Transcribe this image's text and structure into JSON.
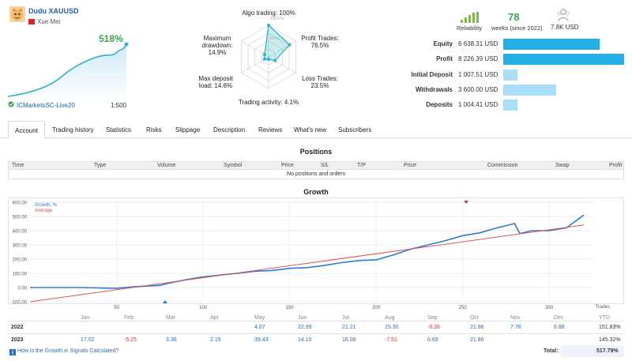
{
  "signal": {
    "name": "Dudu XAUUSD",
    "author": "Xue Mei",
    "growth": "518%",
    "server": "ICMarketsSC-Live20",
    "leverage": "1:500"
  },
  "radar": {
    "algo_trading": "Algo trading: 100%",
    "profit_trades": "Profit Trades:\n76.5%",
    "loss_trades": "Loss Trades:\n23.5%",
    "trading_activity": "Trading activity: 4.1%",
    "max_deposit_load": "Max deposit\nload: 14.6%",
    "max_drawdown": "Maximum\ndrawdown:\n14.9%",
    "scale_100": "100+%",
    "scale_50": "50%",
    "values": {
      "algo": 1.0,
      "profit": 0.765,
      "loss": 0.235,
      "activity": 0.041,
      "load": 0.146,
      "drawdown": 0.149
    }
  },
  "stats": {
    "reliability_label": "Reliability",
    "weeks_value": "78",
    "weeks_label": "weeks (since 2022)",
    "subscribers_value": "7.8K USD",
    "reliability_bars": 5
  },
  "balance": {
    "rows": [
      {
        "label": "Equity",
        "value": "6 638.31 USD",
        "fraction": 0.8,
        "color": "#23b0e8"
      },
      {
        "label": "Profit",
        "value": "8 226.39 USD",
        "fraction": 1.0,
        "color": "#23b0e8"
      },
      {
        "label": "Initial Deposit",
        "value": "1 007.51 USD",
        "fraction": 0.12,
        "color": "#a9defa"
      },
      {
        "label": "Withdrawals",
        "value": "3 600.00 USD",
        "fraction": 0.44,
        "color": "#a9defa"
      },
      {
        "label": "Deposits",
        "value": "1 004.41 USD",
        "fraction": 0.12,
        "color": "#a9defa"
      }
    ]
  },
  "tabs": [
    "Account",
    "Trading history",
    "Statistics",
    "Risks",
    "Slippage",
    "Description",
    "Reviews",
    "What's new",
    "Subscribers"
  ],
  "positions": {
    "title": "Positions",
    "columns": [
      "Time",
      "Type",
      "Volume",
      "Symbol",
      "Price",
      "S/L",
      "T/P",
      "Price",
      "Commission",
      "Swap",
      "Profit"
    ],
    "empty": "No positions and orders"
  },
  "growth": {
    "title": "Growth",
    "legend_growth": "Growth, %",
    "legend_average": "Average",
    "x_label": "Trades",
    "y_ticks": [
      "600.00",
      "500.00",
      "400.00",
      "300.00",
      "200.00",
      "100.00",
      "0.00",
      "-100.00"
    ],
    "x_ticks": [
      "50",
      "100",
      "150",
      "200",
      "250",
      "300"
    ]
  },
  "chart_data": {
    "type": "line",
    "x_label": "Trades",
    "ylim": [
      -100,
      600
    ],
    "xlim": [
      0,
      325
    ],
    "series": [
      {
        "name": "Growth, %",
        "color": "#2b7bd6",
        "x": [
          0,
          10,
          20,
          30,
          40,
          50,
          60,
          70,
          75,
          80,
          90,
          100,
          110,
          120,
          130,
          140,
          150,
          160,
          170,
          180,
          190,
          200,
          210,
          220,
          230,
          240,
          250,
          260,
          270,
          280,
          283,
          290,
          300,
          310,
          320
        ],
        "y": [
          0,
          0,
          0,
          0,
          -3,
          -5,
          5,
          12,
          15,
          30,
          55,
          75,
          88,
          100,
          115,
          120,
          135,
          140,
          155,
          175,
          190,
          195,
          230,
          270,
          300,
          330,
          365,
          385,
          420,
          450,
          380,
          400,
          400,
          420,
          510
        ]
      },
      {
        "name": "Average",
        "color": "#e05555",
        "x": [
          0,
          320
        ],
        "y": [
          -100,
          440
        ]
      }
    ]
  },
  "yearly": {
    "months": [
      "Jan",
      "Feb",
      "Mar",
      "Apr",
      "May",
      "Jun",
      "Jul",
      "Aug",
      "Sep",
      "Oct",
      "Nov",
      "Dec",
      "YTD"
    ],
    "rows": [
      {
        "year": "2022",
        "values": [
          "",
          "",
          "",
          "",
          "4.67",
          "22.99",
          "21.21",
          "15.30",
          "-0.36",
          "21.96",
          "7.78",
          "6.88",
          "151.83%"
        ]
      },
      {
        "year": "2023",
        "values": [
          "17.02",
          "-5.25",
          "3.36",
          "2.15",
          "39.43",
          "14.10",
          "16.08",
          "-7.51",
          "0.69",
          "21.86",
          "",
          "",
          "145.32%"
        ]
      }
    ],
    "footer_link": "How is the Growth in Signals Calculated?",
    "total_label": "Total:",
    "total_value": "517.79%"
  }
}
